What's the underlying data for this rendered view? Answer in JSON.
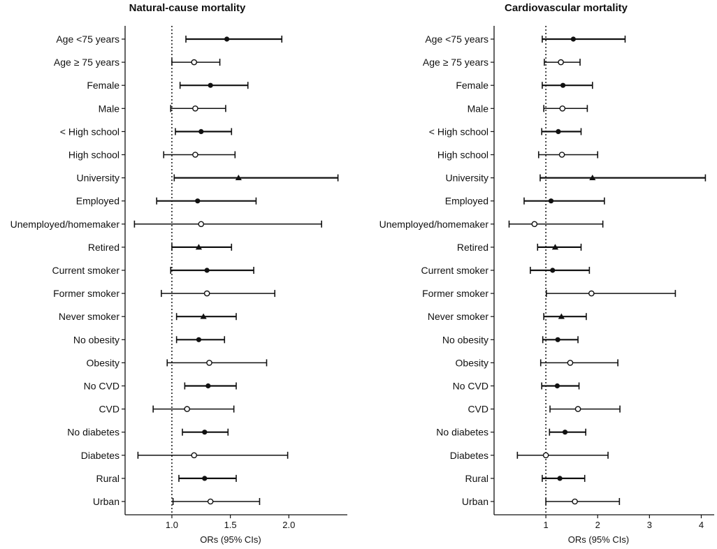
{
  "chart_data": [
    {
      "type": "forest",
      "title": "Natural-cause mortality",
      "xlabel": "ORs (95% CIs)",
      "xlim": [
        0.6,
        2.5
      ],
      "xticks": [
        1.0,
        1.5,
        2.0
      ],
      "xtick_labels": [
        "1.0",
        "1.5",
        "2.0"
      ],
      "reference_line": 1.0,
      "rows": [
        {
          "label": "Age <75 years",
          "or": 1.47,
          "lo": 1.12,
          "hi": 1.94,
          "marker": "filled-circle"
        },
        {
          "label": "Age ≥ 75 years",
          "or": 1.19,
          "lo": 1.0,
          "hi": 1.41,
          "marker": "open-circle"
        },
        {
          "label": "Female",
          "or": 1.33,
          "lo": 1.07,
          "hi": 1.65,
          "marker": "filled-circle"
        },
        {
          "label": "Male",
          "or": 1.2,
          "lo": 0.99,
          "hi": 1.46,
          "marker": "open-circle"
        },
        {
          "label": "< High school",
          "or": 1.25,
          "lo": 1.03,
          "hi": 1.51,
          "marker": "filled-circle"
        },
        {
          "label": "High school",
          "or": 1.2,
          "lo": 0.93,
          "hi": 1.54,
          "marker": "open-circle"
        },
        {
          "label": "University",
          "or": 1.57,
          "lo": 1.02,
          "hi": 2.42,
          "marker": "filled-triangle"
        },
        {
          "label": "Employed",
          "or": 1.22,
          "lo": 0.87,
          "hi": 1.72,
          "marker": "filled-circle"
        },
        {
          "label": "Unemployed/homemaker",
          "or": 1.25,
          "lo": 0.68,
          "hi": 2.28,
          "marker": "open-circle"
        },
        {
          "label": "Retired",
          "or": 1.23,
          "lo": 1.0,
          "hi": 1.51,
          "marker": "filled-triangle"
        },
        {
          "label": "Current smoker",
          "or": 1.3,
          "lo": 0.99,
          "hi": 1.7,
          "marker": "filled-circle"
        },
        {
          "label": "Former smoker",
          "or": 1.3,
          "lo": 0.91,
          "hi": 1.88,
          "marker": "open-circle"
        },
        {
          "label": "Never smoker",
          "or": 1.27,
          "lo": 1.04,
          "hi": 1.55,
          "marker": "filled-triangle"
        },
        {
          "label": "No obesity",
          "or": 1.23,
          "lo": 1.04,
          "hi": 1.45,
          "marker": "filled-circle"
        },
        {
          "label": "Obesity",
          "or": 1.32,
          "lo": 0.96,
          "hi": 1.81,
          "marker": "open-circle"
        },
        {
          "label": "No CVD",
          "or": 1.31,
          "lo": 1.11,
          "hi": 1.55,
          "marker": "filled-circle"
        },
        {
          "label": "CVD",
          "or": 1.13,
          "lo": 0.84,
          "hi": 1.53,
          "marker": "open-circle"
        },
        {
          "label": "No diabetes",
          "or": 1.28,
          "lo": 1.09,
          "hi": 1.48,
          "marker": "filled-circle"
        },
        {
          "label": "Diabetes",
          "or": 1.19,
          "lo": 0.71,
          "hi": 1.99,
          "marker": "open-circle"
        },
        {
          "label": "Rural",
          "or": 1.28,
          "lo": 1.06,
          "hi": 1.55,
          "marker": "filled-circle"
        },
        {
          "label": "Urban",
          "or": 1.33,
          "lo": 1.01,
          "hi": 1.75,
          "marker": "open-circle"
        }
      ]
    },
    {
      "type": "forest",
      "title": "Cardiovascular mortality",
      "xlabel": "ORs (95% CIs)",
      "xlim": [
        0.0,
        4.25
      ],
      "xticks": [
        1,
        2,
        3,
        4
      ],
      "xtick_labels": [
        "1",
        "2",
        "3",
        "4"
      ],
      "reference_line": 1.0,
      "rows": [
        {
          "label": "Age <75 years",
          "or": 1.53,
          "lo": 0.93,
          "hi": 2.53,
          "marker": "filled-circle"
        },
        {
          "label": "Age ≥ 75 years",
          "or": 1.29,
          "lo": 0.97,
          "hi": 1.66,
          "marker": "open-circle"
        },
        {
          "label": "Female",
          "or": 1.33,
          "lo": 0.93,
          "hi": 1.9,
          "marker": "filled-circle"
        },
        {
          "label": "Male",
          "or": 1.32,
          "lo": 0.96,
          "hi": 1.8,
          "marker": "open-circle"
        },
        {
          "label": "< High school",
          "or": 1.24,
          "lo": 0.92,
          "hi": 1.68,
          "marker": "filled-circle"
        },
        {
          "label": "High school",
          "or": 1.31,
          "lo": 0.86,
          "hi": 2.0,
          "marker": "open-circle"
        },
        {
          "label": "University",
          "or": 1.9,
          "lo": 0.89,
          "hi": 4.08,
          "marker": "filled-triangle"
        },
        {
          "label": "Employed",
          "or": 1.1,
          "lo": 0.58,
          "hi": 2.13,
          "marker": "filled-circle"
        },
        {
          "label": "Unemployed/homemaker",
          "or": 0.78,
          "lo": 0.29,
          "hi": 2.1,
          "marker": "open-circle"
        },
        {
          "label": "Retired",
          "or": 1.18,
          "lo": 0.84,
          "hi": 1.68,
          "marker": "filled-triangle"
        },
        {
          "label": "Current smoker",
          "or": 1.13,
          "lo": 0.7,
          "hi": 1.84,
          "marker": "filled-circle"
        },
        {
          "label": "Former smoker",
          "or": 1.88,
          "lo": 1.01,
          "hi": 3.5,
          "marker": "open-circle"
        },
        {
          "label": "Never smoker",
          "or": 1.3,
          "lo": 0.96,
          "hi": 1.78,
          "marker": "filled-triangle"
        },
        {
          "label": "No obesity",
          "or": 1.23,
          "lo": 0.94,
          "hi": 1.62,
          "marker": "filled-circle"
        },
        {
          "label": "Obesity",
          "or": 1.47,
          "lo": 0.9,
          "hi": 2.39,
          "marker": "open-circle"
        },
        {
          "label": "No CVD",
          "or": 1.22,
          "lo": 0.92,
          "hi": 1.64,
          "marker": "filled-circle"
        },
        {
          "label": "CVD",
          "or": 1.62,
          "lo": 1.08,
          "hi": 2.43,
          "marker": "open-circle"
        },
        {
          "label": "No diabetes",
          "or": 1.37,
          "lo": 1.07,
          "hi": 1.77,
          "marker": "filled-circle"
        },
        {
          "label": "Diabetes",
          "or": 1.0,
          "lo": 0.45,
          "hi": 2.2,
          "marker": "open-circle"
        },
        {
          "label": "Rural",
          "or": 1.27,
          "lo": 0.93,
          "hi": 1.75,
          "marker": "filled-circle"
        },
        {
          "label": "Urban",
          "or": 1.56,
          "lo": 1.0,
          "hi": 2.42,
          "marker": "open-circle"
        }
      ]
    }
  ]
}
